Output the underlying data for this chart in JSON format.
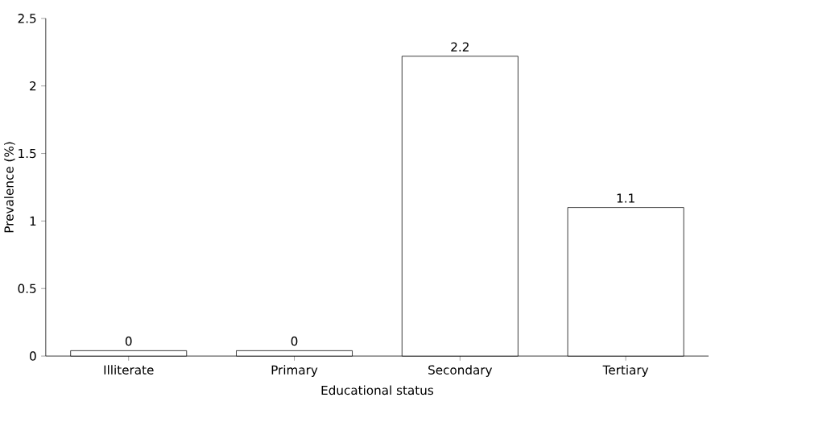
{
  "chart_data": {
    "type": "bar",
    "xlabel": "Educational status",
    "ylabel": "Prevalence (%)",
    "categories": [
      "Illiterate",
      "Primary",
      "Secondary",
      "Tertiary"
    ],
    "values": [
      0.04,
      0.04,
      2.22,
      1.1
    ],
    "value_labels": [
      "0",
      "0",
      "2.2",
      "1.1"
    ],
    "color": "#ffffff",
    "ylim": [
      0,
      2.5
    ],
    "yticks": [
      0,
      0.5,
      1,
      1.5,
      2,
      2.5
    ]
  }
}
